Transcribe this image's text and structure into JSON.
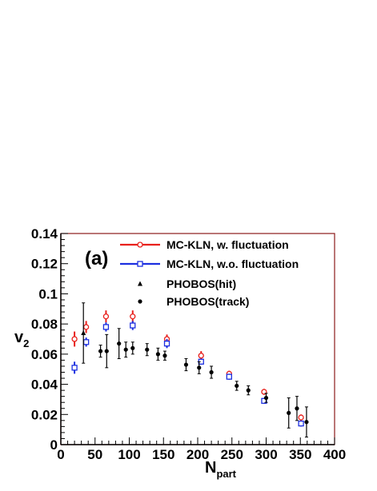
{
  "chart_data": {
    "type": "scatter",
    "panel_label": "(a)",
    "xlabel": "N",
    "xlabel_sub": "part",
    "ylabel": "v",
    "ylabel_sub": "2",
    "xlim": [
      0,
      400
    ],
    "ylim": [
      0,
      0.14
    ],
    "x_ticks": [
      0,
      50,
      100,
      150,
      200,
      250,
      300,
      350,
      400
    ],
    "x_tick_labels": [
      "0",
      "50",
      "100",
      "150",
      "200",
      "250",
      "300",
      "350",
      "400"
    ],
    "y_ticks": [
      0,
      0.02,
      0.04,
      0.06,
      0.08,
      0.1,
      0.12,
      0.14
    ],
    "y_tick_labels": [
      "0",
      "0.02",
      "0.04",
      "0.06",
      "0.08",
      "0.1",
      "0.12",
      "0.14"
    ],
    "grid": false,
    "legend_position": "top-right",
    "colors": {
      "frame": "#8b1a1a",
      "red": "#e8201c",
      "blue": "#1c2fe0",
      "black": "#000000"
    },
    "series": [
      {
        "name": "MC-KLN, w. fluctuation",
        "marker": "open-circle",
        "color": "#e8201c",
        "points": [
          {
            "x": 20,
            "y": 0.07,
            "err": 0.005
          },
          {
            "x": 37,
            "y": 0.078,
            "err": 0.004
          },
          {
            "x": 66,
            "y": 0.085,
            "err": 0.004
          },
          {
            "x": 105,
            "y": 0.085,
            "err": 0.004
          },
          {
            "x": 155,
            "y": 0.07,
            "err": 0.003
          },
          {
            "x": 205,
            "y": 0.059,
            "err": 0.003
          },
          {
            "x": 246,
            "y": 0.047,
            "err": 0.002
          },
          {
            "x": 297,
            "y": 0.035,
            "err": 0.002
          },
          {
            "x": 351,
            "y": 0.018,
            "err": 0.002
          }
        ]
      },
      {
        "name": "MC-KLN, w.o. fluctuation",
        "marker": "open-square",
        "color": "#1c2fe0",
        "points": [
          {
            "x": 20,
            "y": 0.051,
            "err": 0.004
          },
          {
            "x": 37,
            "y": 0.068,
            "err": 0.003
          },
          {
            "x": 66,
            "y": 0.078,
            "err": 0.003
          },
          {
            "x": 105,
            "y": 0.079,
            "err": 0.003
          },
          {
            "x": 155,
            "y": 0.067,
            "err": 0.003
          },
          {
            "x": 205,
            "y": 0.055,
            "err": 0.002
          },
          {
            "x": 246,
            "y": 0.045,
            "err": 0.002
          },
          {
            "x": 297,
            "y": 0.029,
            "err": 0.002
          },
          {
            "x": 351,
            "y": 0.014,
            "err": 0.002
          }
        ]
      },
      {
        "name": "PHOBOS(hit)",
        "marker": "filled-triangle",
        "color": "#000000",
        "points": [
          {
            "x": 33,
            "y": 0.074,
            "err": 0.02
          }
        ]
      },
      {
        "name": "PHOBOS(track)",
        "marker": "filled-circle",
        "color": "#000000",
        "points": [
          {
            "x": 58,
            "y": 0.062,
            "err": 0.004
          },
          {
            "x": 67,
            "y": 0.062,
            "err": 0.011
          },
          {
            "x": 85,
            "y": 0.067,
            "err": 0.01
          },
          {
            "x": 95,
            "y": 0.063,
            "err": 0.005
          },
          {
            "x": 105,
            "y": 0.064,
            "err": 0.004
          },
          {
            "x": 126,
            "y": 0.063,
            "err": 0.004
          },
          {
            "x": 142,
            "y": 0.06,
            "err": 0.004
          },
          {
            "x": 152,
            "y": 0.059,
            "err": 0.003
          },
          {
            "x": 183,
            "y": 0.053,
            "err": 0.004
          },
          {
            "x": 202,
            "y": 0.051,
            "err": 0.004
          },
          {
            "x": 220,
            "y": 0.048,
            "err": 0.004
          },
          {
            "x": 257,
            "y": 0.039,
            "err": 0.003
          },
          {
            "x": 274,
            "y": 0.036,
            "err": 0.003
          },
          {
            "x": 300,
            "y": 0.031,
            "err": 0.003
          },
          {
            "x": 333,
            "y": 0.021,
            "err": 0.01
          },
          {
            "x": 345,
            "y": 0.024,
            "err": 0.008
          },
          {
            "x": 359,
            "y": 0.015,
            "err": 0.01
          }
        ]
      }
    ]
  }
}
